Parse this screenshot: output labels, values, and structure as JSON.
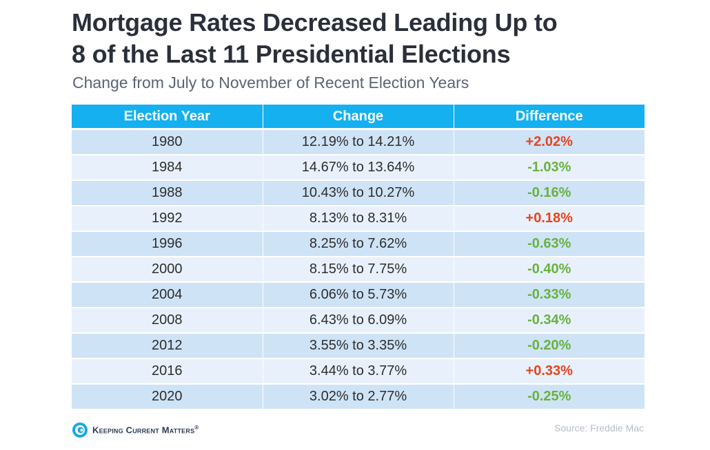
{
  "header": {
    "title_line1": "Mortgage Rates Decreased Leading Up to",
    "title_line2": "8 of the Last 11 Presidential Elections",
    "subtitle": "Change from July to November of Recent Election Years"
  },
  "chart_data": {
    "type": "table",
    "title": "Mortgage Rates Decreased Leading Up to 8 of the Last 11 Presidential Elections",
    "subtitle": "Change from July to November of Recent Election Years",
    "columns": [
      "Election Year",
      "Change",
      "Difference"
    ],
    "rows": [
      {
        "year": "1980",
        "change": "12.19% to 14.21%",
        "difference": "+2.02%",
        "direction": "up"
      },
      {
        "year": "1984",
        "change": "14.67% to 13.64%",
        "difference": "-1.03%",
        "direction": "down"
      },
      {
        "year": "1988",
        "change": "10.43% to 10.27%",
        "difference": "-0.16%",
        "direction": "down"
      },
      {
        "year": "1992",
        "change": "8.13% to 8.31%",
        "difference": "+0.18%",
        "direction": "up"
      },
      {
        "year": "1996",
        "change": "8.25% to 7.62%",
        "difference": "-0.63%",
        "direction": "down"
      },
      {
        "year": "2000",
        "change": "8.15% to 7.75%",
        "difference": "-0.40%",
        "direction": "down"
      },
      {
        "year": "2004",
        "change": "6.06% to 5.73%",
        "difference": "-0.33%",
        "direction": "down"
      },
      {
        "year": "2008",
        "change": "6.43% to 6.09%",
        "difference": "-0.34%",
        "direction": "down"
      },
      {
        "year": "2012",
        "change": "3.55% to 3.35%",
        "difference": "-0.20%",
        "direction": "down"
      },
      {
        "year": "2016",
        "change": "3.44% to 3.77%",
        "difference": "+0.33%",
        "direction": "up"
      },
      {
        "year": "2020",
        "change": "3.02% to 2.77%",
        "difference": "-0.25%",
        "direction": "down"
      }
    ]
  },
  "footer": {
    "brand_name": "Keeping Current Matters",
    "brand_mark": "®",
    "logo_icon": "kcm-swirl-logo-icon",
    "source": "Source:  Freddie Mac"
  },
  "colors": {
    "header_bg": "#15b0f0",
    "row_dark": "#cfe3f6",
    "row_light": "#e8f1fb",
    "increase": "#e8431d",
    "decrease": "#67b33d",
    "title": "#2b2f3a"
  }
}
